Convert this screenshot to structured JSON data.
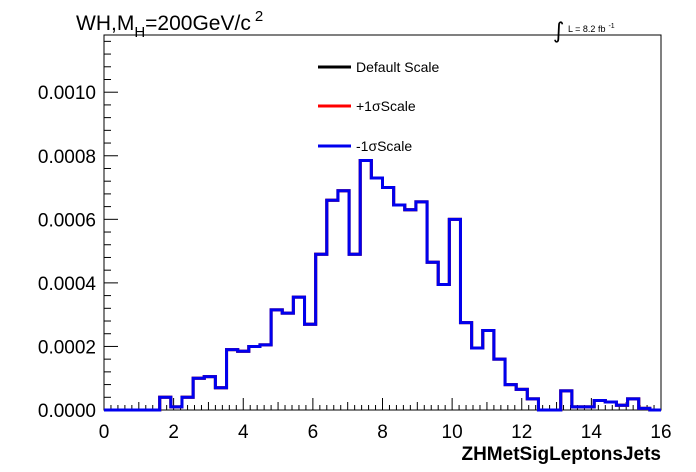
{
  "chart_data": {
    "type": "line",
    "title_main": "WH,M",
    "title_sub": "H",
    "title_rest": "=200GeV/c",
    "title_sup": "2",
    "lumi_symbol": "∫",
    "lumi_text": "L = 8.2 fb",
    "lumi_sup": "-1",
    "xlabel": "ZHMetSigLeptonsJets",
    "ylabel": "",
    "xlim": [
      0,
      16
    ],
    "ylim": [
      0,
      0.00118
    ],
    "x_ticks": [
      0,
      2,
      4,
      6,
      8,
      10,
      12,
      14,
      16
    ],
    "x_tick_labels": [
      "0",
      "2",
      "4",
      "6",
      "8",
      "10",
      "12",
      "14",
      "16"
    ],
    "y_ticks": [
      0,
      0.0002,
      0.0004,
      0.0006,
      0.0008,
      0.001
    ],
    "y_tick_labels": [
      "0.0000",
      "0.0002",
      "0.0004",
      "0.0006",
      "0.0008",
      "0.0010"
    ],
    "bin_edges": [
      0,
      0.32,
      0.64,
      0.96,
      1.28,
      1.6,
      1.92,
      2.24,
      2.56,
      2.88,
      3.2,
      3.52,
      3.84,
      4.16,
      4.48,
      4.8,
      5.12,
      5.44,
      5.76,
      6.08,
      6.4,
      6.72,
      7.04,
      7.36,
      7.68,
      8.0,
      8.32,
      8.64,
      8.96,
      9.28,
      9.6,
      9.92,
      10.24,
      10.56,
      10.88,
      11.2,
      11.52,
      11.84,
      12.16,
      12.48,
      12.8,
      13.12,
      13.44,
      13.76,
      14.08,
      14.4,
      14.72,
      15.04,
      15.36,
      15.68,
      16.0
    ],
    "series": [
      {
        "name": "Default Scale",
        "color": "#000000",
        "values": [
          0,
          0,
          0,
          0,
          0,
          4e-05,
          1e-05,
          4e-05,
          0.0001,
          0.000105,
          7e-05,
          0.00019,
          0.000185,
          0.0002,
          0.000205,
          0.000315,
          0.000305,
          0.000355,
          0.00027,
          0.00049,
          0.00066,
          0.00069,
          0.00049,
          0.000785,
          0.00073,
          0.0007,
          0.000645,
          0.00063,
          0.000655,
          0.000465,
          0.000395,
          0.0006,
          0.000275,
          0.000195,
          0.00025,
          0.00016,
          8e-05,
          6.5e-05,
          3.5e-05,
          0,
          0,
          6e-05,
          1e-05,
          1e-05,
          3e-05,
          2.5e-05,
          1.5e-05,
          3.5e-05,
          5e-06,
          0
        ]
      },
      {
        "name": "+1σScale",
        "color": "#ff0000",
        "values": [
          0,
          0,
          0,
          0,
          0,
          4e-05,
          1e-05,
          4e-05,
          0.0001,
          0.000105,
          7e-05,
          0.00019,
          0.000185,
          0.0002,
          0.000205,
          0.000315,
          0.000305,
          0.000355,
          0.00027,
          0.00049,
          0.00066,
          0.00069,
          0.00049,
          0.000785,
          0.00073,
          0.0007,
          0.000645,
          0.00063,
          0.000655,
          0.000465,
          0.000395,
          0.0006,
          0.000275,
          0.000195,
          0.00025,
          0.00016,
          8e-05,
          6.5e-05,
          3.5e-05,
          0,
          0,
          6e-05,
          1e-05,
          1e-05,
          3e-05,
          2.5e-05,
          1.5e-05,
          3.5e-05,
          5e-06,
          0
        ]
      },
      {
        "name": "-1σScale",
        "color": "#0000ee",
        "values": [
          0,
          0,
          0,
          0,
          0,
          4e-05,
          1e-05,
          4e-05,
          0.0001,
          0.000105,
          7e-05,
          0.00019,
          0.000185,
          0.0002,
          0.000205,
          0.000315,
          0.000305,
          0.000355,
          0.00027,
          0.00049,
          0.00066,
          0.00069,
          0.00049,
          0.000785,
          0.00073,
          0.0007,
          0.000645,
          0.00063,
          0.000655,
          0.000465,
          0.000395,
          0.0006,
          0.000275,
          0.000195,
          0.00025,
          0.00016,
          8e-05,
          6.5e-05,
          3.5e-05,
          0,
          0,
          6e-05,
          1e-05,
          1e-05,
          3e-05,
          2.5e-05,
          1.5e-05,
          3.5e-05,
          5e-06,
          0
        ]
      }
    ],
    "legend_entries": [
      "Default Scale",
      "+1σScale",
      "-1σScale"
    ],
    "legend_position": "top-center",
    "grid": false
  }
}
